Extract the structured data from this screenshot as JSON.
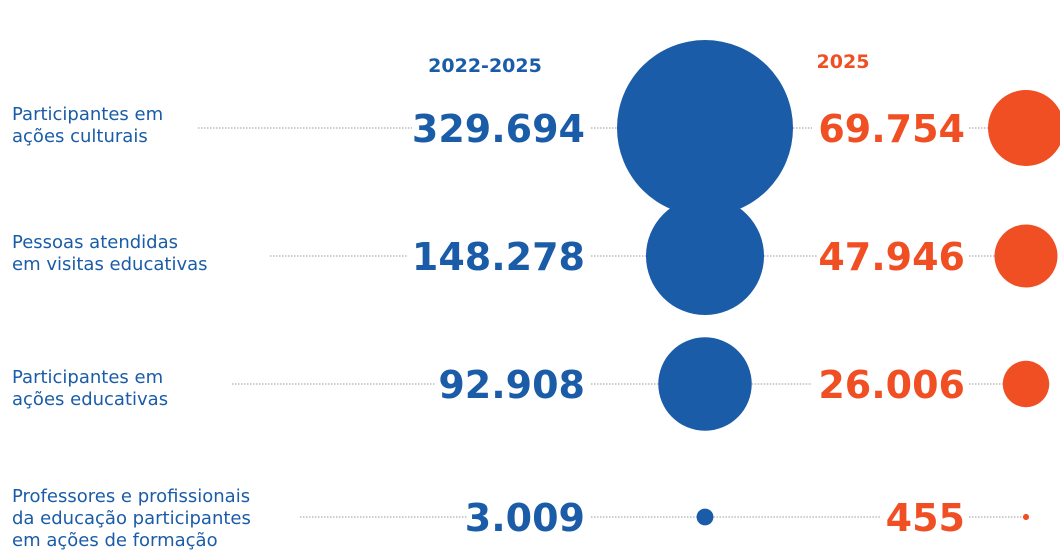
{
  "chart_data": {
    "type": "bubble",
    "series": [
      {
        "name": "2022-2025",
        "color": "#1a5ca8"
      },
      {
        "name": "2025",
        "color": "#f04e23"
      }
    ],
    "rows": [
      {
        "label": "Participantes em\nações culturais",
        "value_total": "329.694",
        "value_year": "69.754",
        "total": 329694,
        "year": 69754
      },
      {
        "label": "Pessoas atendidas\nem visitas educativas",
        "value_total": "148.278",
        "value_year": "47.946",
        "total": 148278,
        "year": 47946
      },
      {
        "label": "Participantes em\nações educativas",
        "value_total": "92.908",
        "value_year": "26.006",
        "total": 92908,
        "year": 26006
      },
      {
        "label": "Professores e profissionais\nda educação participantes\nem ações de formação",
        "value_total": "3.009",
        "value_year": "455",
        "total": 3009,
        "year": 455
      }
    ]
  }
}
